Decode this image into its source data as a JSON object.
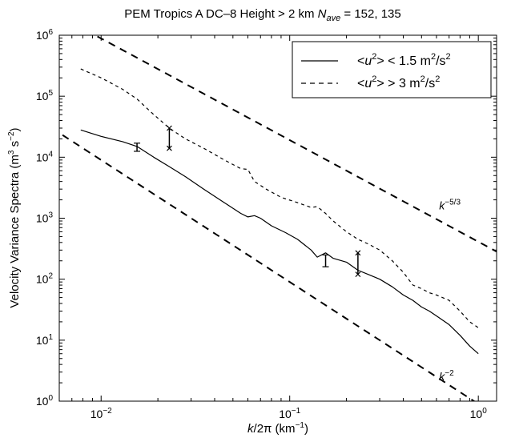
{
  "chart_data": {
    "type": "line",
    "title": {
      "prefix": "PEM Tropics A   DC–8   Height > 2 km   ",
      "n_symbol": "N",
      "n_subscript": "ave",
      "suffix": " = 152, 135"
    },
    "xlabel": {
      "k": "k",
      "rest": "/2π (km",
      "exp": "−1",
      "close": ")"
    },
    "ylabel": {
      "main": "Velocity Variance Spectra (m",
      "exp1": "3",
      "mid": " s",
      "exp2": "−2",
      "close": ")"
    },
    "x_scale": "log",
    "y_scale": "log",
    "xlim": [
      0.006,
      1.25
    ],
    "ylim": [
      1,
      1000000
    ],
    "x_ticks": [
      {
        "value": 0.01,
        "base": "10",
        "exp": "−2"
      },
      {
        "value": 0.1,
        "base": "10",
        "exp": "−1"
      },
      {
        "value": 1,
        "base": "10",
        "exp": "0"
      }
    ],
    "y_ticks": [
      {
        "value": 1,
        "base": "10",
        "exp": "0"
      },
      {
        "value": 10,
        "base": "10",
        "exp": "1"
      },
      {
        "value": 100,
        "base": "10",
        "exp": "2"
      },
      {
        "value": 1000,
        "base": "10",
        "exp": "3"
      },
      {
        "value": 10000,
        "base": "10",
        "exp": "4"
      },
      {
        "value": 100000,
        "base": "10",
        "exp": "5"
      },
      {
        "value": 1000000,
        "base": "10",
        "exp": "6"
      }
    ],
    "grid": false,
    "legend_position": "top-right",
    "series": [
      {
        "name": "<u²> < 1.5 m²/s²",
        "legend": {
          "pre": "<",
          "u": "u",
          "exp": "2",
          "post": "> < 1.5 m",
          "exp2": "2",
          "post2": "/s",
          "exp3": "2"
        },
        "style": "solid",
        "points": [
          [
            0.0078,
            28000
          ],
          [
            0.01,
            22000
          ],
          [
            0.013,
            18000
          ],
          [
            0.0155,
            15000
          ],
          [
            0.019,
            10000
          ],
          [
            0.023,
            7000
          ],
          [
            0.028,
            4800
          ],
          [
            0.035,
            3000
          ],
          [
            0.045,
            1800
          ],
          [
            0.055,
            1200
          ],
          [
            0.06,
            1050
          ],
          [
            0.065,
            1100
          ],
          [
            0.07,
            1000
          ],
          [
            0.08,
            750
          ],
          [
            0.095,
            580
          ],
          [
            0.11,
            450
          ],
          [
            0.13,
            300
          ],
          [
            0.14,
            230
          ],
          [
            0.155,
            270
          ],
          [
            0.17,
            220
          ],
          [
            0.2,
            190
          ],
          [
            0.23,
            140
          ],
          [
            0.26,
            120
          ],
          [
            0.3,
            100
          ],
          [
            0.35,
            75
          ],
          [
            0.4,
            55
          ],
          [
            0.45,
            45
          ],
          [
            0.5,
            35
          ],
          [
            0.55,
            30
          ],
          [
            0.6,
            25
          ],
          [
            0.7,
            18
          ],
          [
            0.8,
            12
          ],
          [
            0.9,
            8
          ],
          [
            1.0,
            6
          ]
        ]
      },
      {
        "name": "<u²> > 3 m²/s²",
        "legend": {
          "pre": "<",
          "u": "u",
          "exp": "2",
          "post": "> > 3 m",
          "exp2": "2",
          "post2": "/s",
          "exp3": "2"
        },
        "style": "dashed",
        "points": [
          [
            0.0078,
            280000
          ],
          [
            0.01,
            200000
          ],
          [
            0.013,
            130000
          ],
          [
            0.0155,
            90000
          ],
          [
            0.019,
            50000
          ],
          [
            0.023,
            30000
          ],
          [
            0.028,
            20000
          ],
          [
            0.035,
            14000
          ],
          [
            0.045,
            9000
          ],
          [
            0.055,
            6500
          ],
          [
            0.06,
            6300
          ],
          [
            0.065,
            4000
          ],
          [
            0.075,
            3000
          ],
          [
            0.09,
            2200
          ],
          [
            0.11,
            1800
          ],
          [
            0.13,
            1500
          ],
          [
            0.14,
            1550
          ],
          [
            0.155,
            1200
          ],
          [
            0.17,
            900
          ],
          [
            0.2,
            600
          ],
          [
            0.23,
            450
          ],
          [
            0.26,
            380
          ],
          [
            0.3,
            300
          ],
          [
            0.35,
            200
          ],
          [
            0.4,
            130
          ],
          [
            0.45,
            80
          ],
          [
            0.5,
            70
          ],
          [
            0.55,
            60
          ],
          [
            0.6,
            55
          ],
          [
            0.7,
            45
          ],
          [
            0.8,
            30
          ],
          [
            0.9,
            20
          ],
          [
            1.0,
            16
          ]
        ]
      }
    ],
    "reference_lines": [
      {
        "label_base": "k",
        "label_exp": "−5/3",
        "slope": -1.6667,
        "anchor": [
          0.0093,
          1000000
        ],
        "label_at": [
          0.62,
          1400
        ]
      },
      {
        "label_base": "k",
        "label_exp": "−2",
        "slope": -2,
        "anchor": [
          0.006,
          25000
        ],
        "label_at": [
          0.62,
          2.2
        ]
      }
    ],
    "error_bars": [
      {
        "x": 0.0155,
        "low": 12500,
        "high": 17000,
        "mark": "+"
      },
      {
        "x": 0.023,
        "low": 14000,
        "high": 30000,
        "mark": "x"
      },
      {
        "x": 0.155,
        "low": 160,
        "high": 250,
        "mark": "+"
      },
      {
        "x": 0.23,
        "low": 120,
        "high": 270,
        "mark": "x"
      }
    ]
  }
}
